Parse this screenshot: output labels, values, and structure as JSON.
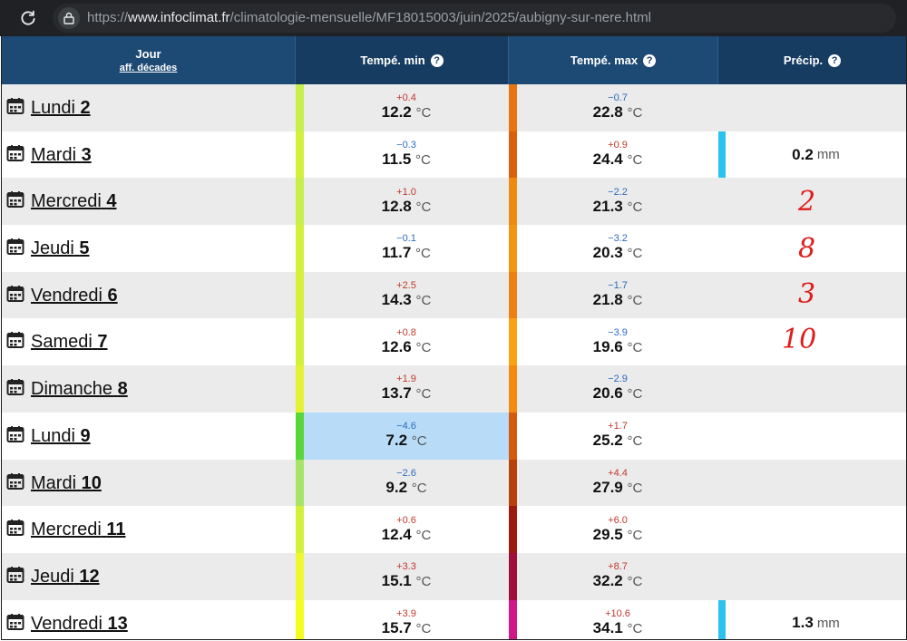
{
  "browser": {
    "url_prefix": "https://",
    "url_domain": "www.infoclimat.fr",
    "url_path": "/climatologie-mensuelle/MF18015003/juin/2025/aubigny-sur-nere.html"
  },
  "table": {
    "headers": {
      "jour": "Jour",
      "jour_sub": "aff. décades",
      "tmin": "Tempé. min",
      "tmax": "Tempé. max",
      "precip": "Précip.",
      "help": "?"
    },
    "rows": [
      {
        "day": "Lundi",
        "num": "2",
        "min_dev": "+0.4",
        "min": "12.2",
        "max_dev": "−0.7",
        "max": "22.8",
        "prec": ""
      },
      {
        "day": "Mardi",
        "num": "3",
        "min_dev": "−0.3",
        "min": "11.5",
        "max_dev": "+0.9",
        "max": "24.4",
        "prec": "0.2"
      },
      {
        "day": "Mercredi",
        "num": "4",
        "min_dev": "+1.0",
        "min": "12.8",
        "max_dev": "−2.2",
        "max": "21.3",
        "prec": ""
      },
      {
        "day": "Jeudi",
        "num": "5",
        "min_dev": "−0.1",
        "min": "11.7",
        "max_dev": "−3.2",
        "max": "20.3",
        "prec": ""
      },
      {
        "day": "Vendredi",
        "num": "6",
        "min_dev": "+2.5",
        "min": "14.3",
        "max_dev": "−1.7",
        "max": "21.8",
        "prec": ""
      },
      {
        "day": "Samedi",
        "num": "7",
        "min_dev": "+0.8",
        "min": "12.6",
        "max_dev": "−3.9",
        "max": "19.6",
        "prec": ""
      },
      {
        "day": "Dimanche",
        "num": "8",
        "min_dev": "+1.9",
        "min": "13.7",
        "max_dev": "−2.9",
        "max": "20.6",
        "prec": ""
      },
      {
        "day": "Lundi",
        "num": "9",
        "min_dev": "−4.6",
        "min": "7.2",
        "max_dev": "+1.7",
        "max": "25.2",
        "prec": ""
      },
      {
        "day": "Mardi",
        "num": "10",
        "min_dev": "−2.6",
        "min": "9.2",
        "max_dev": "+4.4",
        "max": "27.9",
        "prec": ""
      },
      {
        "day": "Mercredi",
        "num": "11",
        "min_dev": "+0.6",
        "min": "12.4",
        "max_dev": "+6.0",
        "max": "29.5",
        "prec": ""
      },
      {
        "day": "Jeudi",
        "num": "12",
        "min_dev": "+3.3",
        "min": "15.1",
        "max_dev": "+8.7",
        "max": "32.2",
        "prec": ""
      },
      {
        "day": "Vendredi",
        "num": "13",
        "min_dev": "+3.9",
        "min": "15.7",
        "max_dev": "+10.6",
        "max": "34.1",
        "prec": "1.3"
      }
    ],
    "temp_unit": "°C",
    "prec_unit": "mm"
  },
  "annotations": [
    "2",
    "8",
    "3",
    "10"
  ],
  "colors": {
    "header_bg": "#1d4a74",
    "min_bar": [
      "#c8f04a",
      "#d2f03c",
      "#c8f04a",
      "#d2f03c",
      "#d8f03a",
      "#d2f03c",
      "#e4f236",
      "#58d63a",
      "#a8e46a",
      "#d2f03c",
      "#eef830",
      "#f4fc20"
    ],
    "max_bar": [
      "#e8740e",
      "#d9600c",
      "#ee8a10",
      "#f09612",
      "#ec8010",
      "#f8a214",
      "#f28c10",
      "#d55a0c",
      "#b8400a",
      "#9c1a10",
      "#a0103c",
      "#d01888"
    ],
    "min_cell_highlight": "#b8dcf8",
    "precip_bar": "#2bc3ee",
    "handwritten": "#e01b1b"
  }
}
